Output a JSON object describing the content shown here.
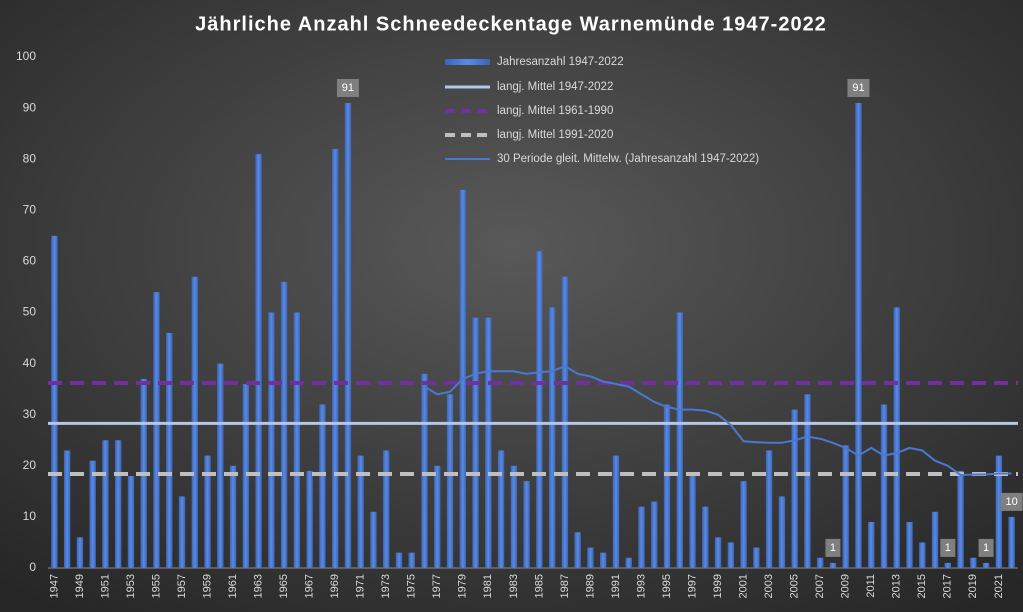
{
  "chart_data": {
    "type": "bar",
    "title": "Jährliche Anzahl Schneedeckentage Warnemünde 1947-2022",
    "categories": [
      "1947",
      null,
      "1949",
      null,
      "1951",
      null,
      "1953",
      null,
      "1955",
      null,
      "1957",
      null,
      "1959",
      null,
      "1961",
      null,
      "1963",
      null,
      "1965",
      null,
      "1967",
      null,
      "1969",
      null,
      "1971",
      null,
      "1973",
      null,
      "1975",
      null,
      "1977",
      null,
      "1979",
      null,
      "1981",
      null,
      "1983",
      null,
      "1985",
      null,
      "1987",
      null,
      "1989",
      null,
      "1991",
      null,
      "1993",
      null,
      "1995",
      null,
      "1997",
      null,
      "1999",
      null,
      "2001",
      null,
      "2003",
      null,
      "2005",
      null,
      "2007",
      null,
      "2009",
      null,
      "2011",
      null,
      "2013",
      null,
      "2015",
      null,
      "2017",
      null,
      "2019",
      null,
      "2021",
      null
    ],
    "series": [
      {
        "name": "Jahresanzahl 1947-2022",
        "type": "bar",
        "color": "#4a78d0",
        "values": [
          65,
          23,
          6,
          21,
          25,
          25,
          18,
          37,
          54,
          46,
          14,
          57,
          22,
          40,
          20,
          36,
          81,
          50,
          56,
          50,
          19,
          32,
          82,
          91,
          22,
          11,
          23,
          3,
          3,
          38,
          20,
          34,
          74,
          49,
          49,
          23,
          20,
          17,
          62,
          51,
          57,
          7,
          4,
          3,
          22,
          2,
          12,
          13,
          32,
          50,
          18,
          12,
          6,
          5,
          17,
          4,
          23,
          14,
          31,
          34,
          2,
          1,
          24,
          91,
          9,
          32,
          51,
          9,
          5,
          11,
          1,
          19,
          2,
          1,
          22,
          10
        ],
        "value_labels": [
          null,
          null,
          null,
          null,
          null,
          null,
          null,
          null,
          null,
          null,
          null,
          null,
          null,
          null,
          null,
          null,
          null,
          null,
          null,
          null,
          null,
          null,
          null,
          "91",
          null,
          null,
          null,
          null,
          null,
          null,
          null,
          null,
          null,
          null,
          null,
          null,
          null,
          null,
          null,
          null,
          null,
          null,
          null,
          null,
          null,
          null,
          null,
          null,
          null,
          null,
          null,
          null,
          null,
          null,
          null,
          null,
          null,
          null,
          null,
          null,
          null,
          "1",
          null,
          "91",
          null,
          null,
          null,
          null,
          null,
          null,
          "1",
          null,
          null,
          "1",
          null,
          "10"
        ]
      },
      {
        "name": "langj. Mittel 1947-2022",
        "type": "hline",
        "color": "#b4c7e7",
        "value": 28.3,
        "dashed": false
      },
      {
        "name": "langj. Mittel 1961-1990",
        "type": "hline",
        "color": "#7030a0",
        "value": 36.2,
        "dashed": true
      },
      {
        "name": "langj. Mittel 1991-2020",
        "type": "hline",
        "color": "#bfbfbf",
        "value": 18.4,
        "dashed": true
      },
      {
        "name": "30 Periode gleit. Mittelw. (Jahresanzahl 1947-2022)",
        "type": "line",
        "color": "#4a78d0",
        "values": [
          null,
          null,
          null,
          null,
          null,
          null,
          null,
          null,
          null,
          null,
          null,
          null,
          null,
          null,
          null,
          null,
          null,
          null,
          null,
          null,
          null,
          null,
          null,
          null,
          null,
          null,
          null,
          null,
          null,
          35.5,
          34,
          34.5,
          37,
          38,
          38.5,
          38.5,
          38.5,
          38,
          38.3,
          38.5,
          39.5,
          38,
          37.5,
          36.5,
          36,
          35.5,
          34,
          32.5,
          31.5,
          31,
          31,
          30.8,
          30,
          28,
          24.8,
          24.6,
          24.5,
          24.5,
          25,
          25.7,
          25.3,
          24.5,
          23.5,
          22,
          23.5,
          22,
          22.5,
          23.5,
          23,
          21,
          20,
          18.2,
          18.3,
          18.3,
          18.5,
          18.5
        ]
      }
    ],
    "ylim": [
      0,
      100
    ],
    "yticks": [
      0,
      10,
      20,
      30,
      40,
      50,
      60,
      70,
      80,
      90,
      100
    ],
    "grid": false
  }
}
